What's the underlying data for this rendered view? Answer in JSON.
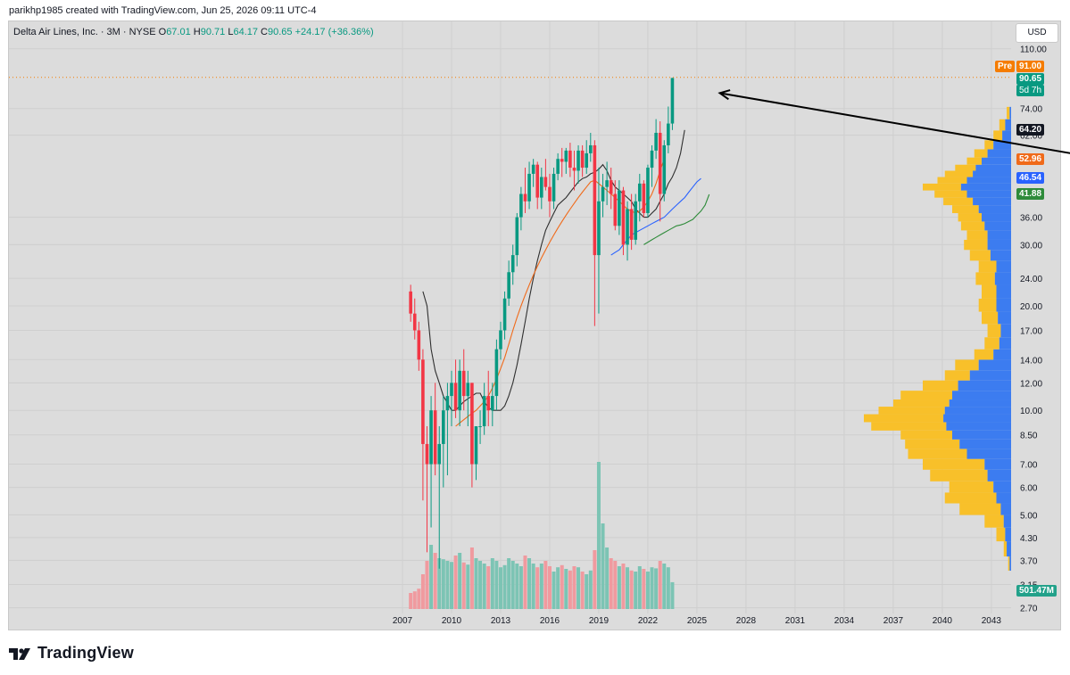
{
  "credit": "parikhp1985 created with TradingView.com, Jun 25, 2026 09:11 UTC-4",
  "legend": {
    "symbol": "Delta Air Lines, Inc. · 3M · NYSE",
    "o_label": "O",
    "o": "67.01",
    "h_label": "H",
    "h": "90.71",
    "l_label": "L",
    "l": "64.17",
    "c_label": "C",
    "c": "90.65",
    "change": "+24.17 (+36.36%)"
  },
  "currency": "USD",
  "badges": {
    "pre_label": "Pre",
    "pre": "91.00",
    "last": "90.65",
    "countdown": "5d 7h",
    "ma1": "64.20",
    "ma2": "52.96",
    "ma3": "46.54",
    "ma4": "41.88",
    "volume": "501.47M"
  },
  "colors": {
    "up": "#089981",
    "down": "#f23645",
    "pre": "#f57c00",
    "ma_fast": "#2f2f2f",
    "ma_mid": "#f06a1a",
    "ma_blue": "#2962ff",
    "ma_green": "#2e8b3a",
    "profile_yellow": "#f8c02a",
    "profile_blue": "#3c7cf0"
  },
  "footer": {
    "logo": "TradingView"
  },
  "chart_data": {
    "type": "candlestick",
    "scale": "log",
    "interval": "3M",
    "ylim": [
      2.6,
      120
    ],
    "yticks": [
      "110.00",
      "74.00",
      "62.00",
      "36.00",
      "30.00",
      "24.00",
      "20.00",
      "17.00",
      "14.00",
      "12.00",
      "10.00",
      "8.50",
      "7.00",
      "6.00",
      "5.00",
      "4.30",
      "3.70",
      "3.15",
      "2.70"
    ],
    "xticks": [
      "2007",
      "2010",
      "2013",
      "2016",
      "2019",
      "2022",
      "2025",
      "2028",
      "2031",
      "2034",
      "2037",
      "2040",
      "2043"
    ],
    "x_start": 2007.5,
    "quarters_per_year": 4,
    "candles": [
      [
        22,
        23,
        18,
        19
      ],
      [
        19,
        21,
        16,
        17
      ],
      [
        17,
        18,
        13,
        14
      ],
      [
        14,
        15,
        5.5,
        8
      ],
      [
        8,
        9,
        3.9,
        7
      ],
      [
        7,
        11,
        4.6,
        10
      ],
      [
        10,
        12,
        6.5,
        7
      ],
      [
        7,
        9,
        3.5,
        8
      ],
      [
        8,
        11,
        6,
        10
      ],
      [
        10,
        12,
        6.5,
        11
      ],
      [
        11,
        13,
        9,
        12
      ],
      [
        12,
        14,
        9.5,
        10
      ],
      [
        10,
        14,
        9,
        13
      ],
      [
        13,
        15,
        10,
        11
      ],
      [
        11,
        13,
        9,
        12
      ],
      [
        12,
        12,
        6,
        7
      ],
      [
        7,
        9,
        6.3,
        9
      ],
      [
        9,
        10,
        8,
        9
      ],
      [
        9,
        12,
        8.5,
        11
      ],
      [
        11,
        13,
        9,
        10
      ],
      [
        10,
        12,
        9,
        11
      ],
      [
        11,
        16,
        10,
        15
      ],
      [
        15,
        18,
        14,
        17
      ],
      [
        17,
        22,
        16,
        21
      ],
      [
        21,
        27,
        20,
        25
      ],
      [
        25,
        30,
        23,
        28
      ],
      [
        28,
        37,
        26,
        36
      ],
      [
        36,
        44,
        33,
        42
      ],
      [
        42,
        50,
        37,
        40
      ],
      [
        40,
        52,
        38,
        48
      ],
      [
        48,
        53,
        44,
        51
      ],
      [
        51,
        52,
        38,
        41
      ],
      [
        41,
        50,
        38,
        47
      ],
      [
        47,
        53,
        43,
        44
      ],
      [
        44,
        48,
        36,
        40
      ],
      [
        40,
        50,
        38,
        48
      ],
      [
        48,
        55,
        46,
        53
      ],
      [
        53,
        57,
        47,
        52
      ],
      [
        52,
        57,
        48,
        56
      ],
      [
        56,
        59,
        47,
        50
      ],
      [
        50,
        56,
        43,
        49
      ],
      [
        49,
        58,
        45,
        56
      ],
      [
        56,
        58,
        47,
        50
      ],
      [
        50,
        60,
        48,
        55
      ],
      [
        55,
        63,
        52,
        58
      ],
      [
        58,
        60,
        17.5,
        28
      ],
      [
        28,
        50,
        19,
        40
      ],
      [
        40,
        48,
        36,
        44
      ],
      [
        44,
        52,
        39,
        46
      ],
      [
        46,
        50,
        38,
        42
      ],
      [
        42,
        46,
        33,
        34
      ],
      [
        34,
        46,
        32,
        43
      ],
      [
        43,
        44,
        28,
        30
      ],
      [
        30,
        40,
        27,
        38
      ],
      [
        38,
        42,
        29,
        31
      ],
      [
        31,
        42,
        30,
        40
      ],
      [
        40,
        48,
        35,
        45
      ],
      [
        45,
        46,
        36,
        37
      ],
      [
        37,
        51,
        36,
        50
      ],
      [
        50,
        58,
        44,
        56
      ],
      [
        56,
        69,
        53,
        63
      ],
      [
        63,
        68,
        35,
        42
      ],
      [
        42,
        60,
        40,
        58
      ],
      [
        58,
        75,
        55,
        67
      ],
      [
        67,
        90.71,
        64.17,
        90.65
      ]
    ],
    "volume_unit": "M",
    "volume": [
      300,
      330,
      380,
      650,
      900,
      1200,
      1050,
      950,
      930,
      900,
      880,
      1000,
      1050,
      870,
      830,
      1150,
      950,
      900,
      850,
      800,
      950,
      900,
      780,
      820,
      950,
      900,
      850,
      800,
      1000,
      950,
      850,
      780,
      850,
      900,
      800,
      700,
      780,
      820,
      750,
      720,
      800,
      780,
      700,
      650,
      720,
      1100,
      2750,
      1600,
      1150,
      950,
      900,
      800,
      850,
      780,
      720,
      700,
      800,
      750,
      700,
      780,
      760,
      900,
      850,
      780,
      501.47
    ],
    "moving_averages": [
      {
        "color_key": "ma_fast",
        "last": 64.2,
        "start_year": 2008.25,
        "values": [
          22,
          20,
          15,
          13,
          12,
          11,
          10.5,
          10,
          10,
          10.3,
          10.6,
          10.8,
          11,
          11.2,
          11.2,
          10.6,
          10.2,
          10,
          10,
          10,
          10.3,
          11,
          12,
          13.5,
          15.5,
          18,
          21,
          24,
          27,
          30,
          33,
          35,
          37,
          39,
          40,
          41,
          42.5,
          44,
          45.5,
          46.5,
          47,
          48,
          48.5,
          49.5,
          51,
          49,
          46,
          44,
          43,
          42,
          41,
          40,
          38,
          37,
          36,
          36,
          37,
          38,
          40,
          42,
          45,
          47,
          50,
          55,
          64.2
        ]
      },
      {
        "color_key": "ma_mid",
        "last": 52.96,
        "start_year": 2010.25,
        "values": [
          9,
          9.2,
          9.4,
          9.6,
          9.8,
          10,
          10.3,
          10.6,
          11,
          11.6,
          12.3,
          13.2,
          14.2,
          15.5,
          17,
          18.5,
          20,
          21.5,
          23,
          24.5,
          26,
          27.5,
          29,
          30.5,
          32,
          33.5,
          35,
          36.5,
          38,
          39.5,
          41,
          42.5,
          44,
          45.5,
          46,
          45,
          44,
          43,
          42,
          41,
          40,
          39,
          38,
          37.5,
          37,
          37.5,
          38.5,
          40,
          42,
          45,
          49,
          52.96
        ]
      },
      {
        "color_key": "ma_blue",
        "last": 46.54,
        "start_year": 2019.75,
        "values": [
          28,
          28.5,
          29,
          30,
          31,
          32,
          32.5,
          33,
          33.5,
          34,
          34.5,
          35,
          35.5,
          36,
          37,
          38,
          39,
          40,
          41,
          42.5,
          44,
          45.5,
          46.54
        ]
      },
      {
        "color_key": "ma_green",
        "last": 41.88,
        "start_year": 2021.75,
        "values": [
          30,
          30.5,
          31,
          31.5,
          32,
          32.5,
          33,
          33.5,
          34,
          34.2,
          34.5,
          35,
          35.5,
          36.5,
          37.5,
          39,
          41.88
        ]
      }
    ],
    "volume_profile": {
      "side": "right",
      "total_max": 1,
      "levels": [
        {
          "price": 3.6,
          "total": 0.02,
          "up": 0.01
        },
        {
          "price": 4.0,
          "total": 0.05,
          "up": 0.03
        },
        {
          "price": 4.4,
          "total": 0.1,
          "up": 0.04
        },
        {
          "price": 4.8,
          "total": 0.18,
          "up": 0.05
        },
        {
          "price": 5.2,
          "total": 0.35,
          "up": 0.07
        },
        {
          "price": 5.6,
          "total": 0.45,
          "up": 0.1
        },
        {
          "price": 6.0,
          "total": 0.42,
          "up": 0.12
        },
        {
          "price": 6.5,
          "total": 0.55,
          "up": 0.16
        },
        {
          "price": 7.0,
          "total": 0.6,
          "up": 0.18
        },
        {
          "price": 7.5,
          "total": 0.7,
          "up": 0.3
        },
        {
          "price": 8.0,
          "total": 0.72,
          "up": 0.35
        },
        {
          "price": 8.5,
          "total": 0.75,
          "up": 0.4
        },
        {
          "price": 9.0,
          "total": 0.95,
          "up": 0.44
        },
        {
          "price": 9.5,
          "total": 1.0,
          "up": 0.46
        },
        {
          "price": 10.0,
          "total": 0.9,
          "up": 0.45
        },
        {
          "price": 10.5,
          "total": 0.8,
          "up": 0.42
        },
        {
          "price": 11.0,
          "total": 0.75,
          "up": 0.4
        },
        {
          "price": 11.8,
          "total": 0.6,
          "up": 0.36
        },
        {
          "price": 12.6,
          "total": 0.45,
          "up": 0.28
        },
        {
          "price": 13.5,
          "total": 0.38,
          "up": 0.22
        },
        {
          "price": 14.5,
          "total": 0.25,
          "up": 0.12
        },
        {
          "price": 15.5,
          "total": 0.18,
          "up": 0.08
        },
        {
          "price": 17.0,
          "total": 0.16,
          "up": 0.07
        },
        {
          "price": 18.5,
          "total": 0.2,
          "up": 0.09
        },
        {
          "price": 20.0,
          "total": 0.22,
          "up": 0.1
        },
        {
          "price": 22.0,
          "total": 0.2,
          "up": 0.1
        },
        {
          "price": 24.0,
          "total": 0.24,
          "up": 0.11
        },
        {
          "price": 26.0,
          "total": 0.22,
          "up": 0.1
        },
        {
          "price": 28.0,
          "total": 0.28,
          "up": 0.14
        },
        {
          "price": 30.0,
          "total": 0.32,
          "up": 0.16
        },
        {
          "price": 32.0,
          "total": 0.3,
          "up": 0.16
        },
        {
          "price": 34.0,
          "total": 0.34,
          "up": 0.18
        },
        {
          "price": 36.0,
          "total": 0.36,
          "up": 0.2
        },
        {
          "price": 38.0,
          "total": 0.4,
          "up": 0.22
        },
        {
          "price": 40.0,
          "total": 0.46,
          "up": 0.26
        },
        {
          "price": 42.0,
          "total": 0.52,
          "up": 0.3
        },
        {
          "price": 44.0,
          "total": 0.6,
          "up": 0.34
        },
        {
          "price": 46.0,
          "total": 0.5,
          "up": 0.3
        },
        {
          "price": 48.0,
          "total": 0.45,
          "up": 0.26
        },
        {
          "price": 50.0,
          "total": 0.38,
          "up": 0.24
        },
        {
          "price": 52.0,
          "total": 0.3,
          "up": 0.2
        },
        {
          "price": 55.0,
          "total": 0.25,
          "up": 0.16
        },
        {
          "price": 58.0,
          "total": 0.18,
          "up": 0.12
        },
        {
          "price": 62.0,
          "total": 0.12,
          "up": 0.06
        },
        {
          "price": 66.0,
          "total": 0.08,
          "up": 0.04
        },
        {
          "price": 72.0,
          "total": 0.03,
          "up": 0.01
        }
      ]
    },
    "annotations": [
      {
        "type": "arrow",
        "from": {
          "year": 2053.0,
          "price": 50
        },
        "to": {
          "year": 2026.4,
          "price": 82
        }
      },
      {
        "type": "hline",
        "price": 91.0,
        "style": "dotted",
        "color_key": "pre"
      }
    ]
  }
}
